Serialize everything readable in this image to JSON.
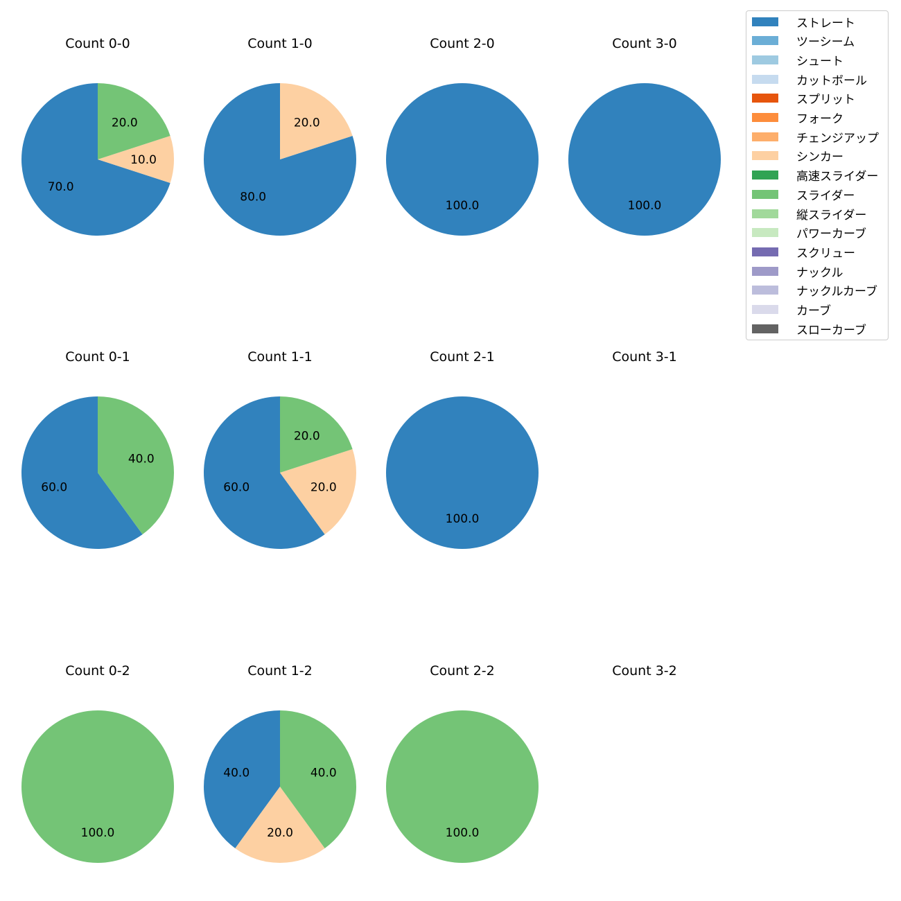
{
  "colors": {
    "ストレート": "#3182bd",
    "ツーシーム": "#6baed6",
    "シュート": "#9ecae1",
    "カットボール": "#c6dbef",
    "スプリット": "#e6550d",
    "フォーク": "#fd8d3c",
    "チェンジアップ": "#fdae6b",
    "シンカー": "#fdd0a2",
    "高速スライダー": "#31a354",
    "スライダー": "#74c476",
    "縦スライダー": "#a1d99b",
    "パワーカーブ": "#c7e9c0",
    "スクリュー": "#756bb1",
    "ナックル": "#9e9ac8",
    "ナックルカーブ": "#bcbddc",
    "カーブ": "#dadaeb",
    "スローカーブ": "#636363"
  },
  "chart_data": [
    {
      "type": "pie",
      "title": "Count 0-0",
      "labels": [
        "ストレート",
        "シンカー",
        "スライダー"
      ],
      "values": [
        70.0,
        10.0,
        20.0
      ]
    },
    {
      "type": "pie",
      "title": "Count 1-0",
      "labels": [
        "ストレート",
        "シンカー"
      ],
      "values": [
        80.0,
        20.0
      ]
    },
    {
      "type": "pie",
      "title": "Count 2-0",
      "labels": [
        "ストレート"
      ],
      "values": [
        100.0
      ]
    },
    {
      "type": "pie",
      "title": "Count 3-0",
      "labels": [
        "ストレート"
      ],
      "values": [
        100.0
      ]
    },
    {
      "type": "pie",
      "title": "Count 0-1",
      "labels": [
        "ストレート",
        "スライダー"
      ],
      "values": [
        60.0,
        40.0
      ]
    },
    {
      "type": "pie",
      "title": "Count 1-1",
      "labels": [
        "ストレート",
        "シンカー",
        "スライダー"
      ],
      "values": [
        60.0,
        20.0,
        20.0
      ]
    },
    {
      "type": "pie",
      "title": "Count 2-1",
      "labels": [
        "ストレート"
      ],
      "values": [
        100.0
      ]
    },
    {
      "type": "pie",
      "title": "Count 3-1",
      "labels": [],
      "values": []
    },
    {
      "type": "pie",
      "title": "Count 0-2",
      "labels": [
        "スライダー"
      ],
      "values": [
        100.0
      ]
    },
    {
      "type": "pie",
      "title": "Count 1-2",
      "labels": [
        "ストレート",
        "シンカー",
        "スライダー"
      ],
      "values": [
        40.0,
        20.0,
        40.0
      ]
    },
    {
      "type": "pie",
      "title": "Count 2-2",
      "labels": [
        "スライダー"
      ],
      "values": [
        100.0
      ]
    },
    {
      "type": "pie",
      "title": "Count 3-2",
      "labels": [],
      "values": []
    }
  ],
  "legend": {
    "items": [
      "ストレート",
      "ツーシーム",
      "シュート",
      "カットボール",
      "スプリット",
      "フォーク",
      "チェンジアップ",
      "シンカー",
      "高速スライダー",
      "スライダー",
      "縦スライダー",
      "パワーカーブ",
      "スクリュー",
      "ナックル",
      "ナックルカーブ",
      "カーブ",
      "スローカーブ"
    ]
  }
}
